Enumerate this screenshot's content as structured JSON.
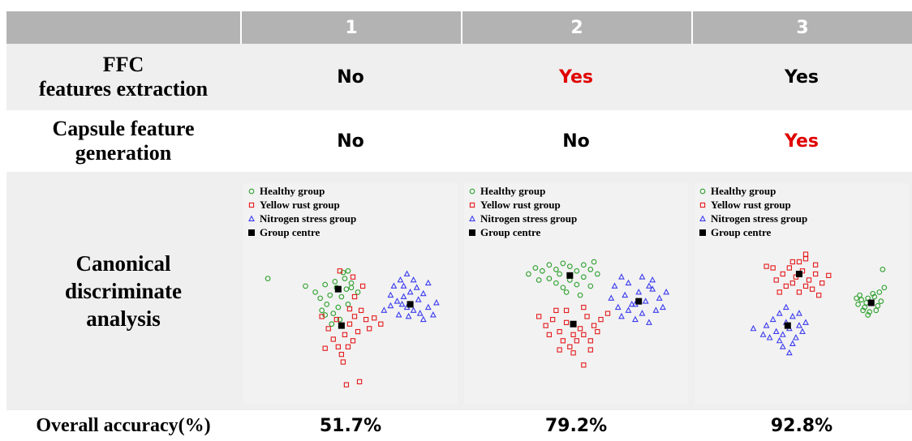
{
  "header": {
    "columns": [
      "",
      "1",
      "2",
      "3"
    ]
  },
  "rows": {
    "ffc": {
      "label": [
        "FFC",
        "features extraction"
      ],
      "values": [
        "No",
        "Yes",
        "Yes"
      ],
      "highlight": [
        false,
        true,
        false
      ]
    },
    "capsule": {
      "label": [
        "Capsule feature",
        "generation"
      ],
      "values": [
        "No",
        "No",
        "Yes"
      ],
      "highlight": [
        false,
        false,
        true
      ]
    },
    "cda": {
      "label": [
        "Canonical",
        "discriminate",
        "analysis"
      ]
    },
    "accuracy": {
      "label": "Overall accuracy(%)",
      "values": [
        "51.7%",
        "79.2%",
        "92.8%"
      ]
    }
  },
  "colors": {
    "header_bg": "#b3b3b3",
    "highlight": "#e00000",
    "healthy": "#2ca02c",
    "yellow_rust": "#e41a1c",
    "nitrogen": "#3b3bf0",
    "centre": "#000000"
  },
  "legend": [
    "Healthy group",
    "Yellow rust group",
    "Nitrogen stress group",
    "Group centre"
  ],
  "chart_data": [
    {
      "type": "scatter",
      "title": "",
      "series": [
        {
          "name": "Healthy group",
          "marker": "circle",
          "points": [
            [
              -3.2,
              1.0
            ],
            [
              -2.6,
              0.6
            ],
            [
              -2.3,
              0.2
            ],
            [
              -1.9,
              -0.2
            ],
            [
              -2.2,
              -0.6
            ],
            [
              -1.5,
              -0.8
            ],
            [
              -1.2,
              -0.4
            ],
            [
              -1.0,
              0.3
            ],
            [
              -0.7,
              0.8
            ],
            [
              -0.4,
              1.2
            ],
            [
              -0.8,
              1.5
            ],
            [
              -1.4,
              1.3
            ],
            [
              -2.0,
              1.1
            ],
            [
              -1.7,
              0.4
            ],
            [
              -1.1,
              -1.2
            ],
            [
              -0.4,
              0.9
            ],
            [
              0.0,
              0.6
            ],
            [
              -1.3,
              0.9
            ],
            [
              -0.6,
              -0.2
            ],
            [
              -1.6,
              -1.5
            ],
            [
              -2.0,
              -0.9
            ],
            [
              -0.9,
              1.9
            ],
            [
              -0.6,
              2.0
            ],
            [
              -5.5,
              1.5
            ]
          ]
        },
        {
          "name": "Yellow rust group",
          "marker": "square",
          "points": [
            [
              -1.8,
              -1.8
            ],
            [
              -1.5,
              -2.5
            ],
            [
              -1.2,
              -3.0
            ],
            [
              -0.8,
              -2.2
            ],
            [
              -0.5,
              -1.5
            ],
            [
              -0.2,
              -1.0
            ],
            [
              0.2,
              -0.6
            ],
            [
              0.5,
              -1.2
            ],
            [
              0.0,
              -2.0
            ],
            [
              -0.6,
              -3.0
            ],
            [
              -1.0,
              -3.5
            ],
            [
              -1.3,
              -1.2
            ],
            [
              -0.3,
              -2.6
            ],
            [
              0.7,
              -1.8
            ],
            [
              1.0,
              -1.1
            ],
            [
              1.4,
              -1.5
            ],
            [
              -2.0,
              -3.1
            ],
            [
              -0.9,
              -4.0
            ],
            [
              -0.5,
              -0.5
            ],
            [
              -0.2,
              0.3
            ],
            [
              0.3,
              1.0
            ],
            [
              -1.1,
              2.0
            ],
            [
              -0.3,
              1.6
            ],
            [
              0.1,
              -5.3
            ],
            [
              -0.7,
              -5.5
            ],
            [
              -2.2,
              -1.0
            ]
          ]
        },
        {
          "name": "Nitrogen stress group",
          "marker": "triangle",
          "points": [
            [
              1.6,
              -0.6
            ],
            [
              2.0,
              -0.3
            ],
            [
              2.4,
              0.0
            ],
            [
              2.8,
              0.3
            ],
            [
              3.2,
              0.6
            ],
            [
              3.6,
              0.9
            ],
            [
              4.0,
              0.5
            ],
            [
              3.0,
              -0.4
            ],
            [
              3.4,
              -0.6
            ],
            [
              3.8,
              -0.8
            ],
            [
              4.3,
              -0.4
            ],
            [
              4.6,
              -0.9
            ],
            [
              4.0,
              -1.2
            ],
            [
              3.1,
              -1.0
            ],
            [
              2.5,
              -0.9
            ],
            [
              2.0,
              0.4
            ],
            [
              2.8,
              1.0
            ],
            [
              3.4,
              1.4
            ],
            [
              4.3,
              1.2
            ],
            [
              4.8,
              -0.1
            ],
            [
              3.7,
              0.1
            ],
            [
              2.7,
              -0.2
            ],
            [
              2.2,
              1.0
            ],
            [
              2.6,
              1.4
            ],
            [
              3.0,
              1.8
            ]
          ]
        },
        {
          "name": "Group centre",
          "marker": "square-filled",
          "points": [
            [
              -1.2,
              0.8
            ],
            [
              -1.0,
              -1.6
            ],
            [
              3.2,
              -0.2
            ]
          ]
        }
      ]
    },
    {
      "type": "scatter",
      "title": "",
      "series": [
        {
          "name": "Healthy group",
          "marker": "circle",
          "points": [
            [
              -3.2,
              1.8
            ],
            [
              -2.8,
              2.2
            ],
            [
              -2.4,
              2.0
            ],
            [
              -2.0,
              2.4
            ],
            [
              -1.6,
              2.1
            ],
            [
              -1.2,
              2.5
            ],
            [
              -0.8,
              2.3
            ],
            [
              -0.4,
              2.0
            ],
            [
              0.0,
              2.4
            ],
            [
              0.4,
              2.1
            ],
            [
              0.8,
              1.8
            ],
            [
              -2.0,
              1.5
            ],
            [
              -1.6,
              1.2
            ],
            [
              -1.2,
              0.9
            ],
            [
              -0.8,
              1.4
            ],
            [
              -0.4,
              1.1
            ],
            [
              0.0,
              1.6
            ],
            [
              0.4,
              1.0
            ],
            [
              -1.0,
              0.6
            ],
            [
              -0.2,
              0.4
            ],
            [
              -2.6,
              1.4
            ],
            [
              -1.4,
              1.8
            ],
            [
              0.6,
              2.6
            ]
          ]
        },
        {
          "name": "Yellow rust group",
          "marker": "square",
          "points": [
            [
              -2.6,
              -1.0
            ],
            [
              -2.2,
              -1.6
            ],
            [
              -1.8,
              -1.2
            ],
            [
              -1.4,
              -2.0
            ],
            [
              -1.0,
              -1.4
            ],
            [
              -0.6,
              -2.2
            ],
            [
              -0.2,
              -1.8
            ],
            [
              0.2,
              -1.0
            ],
            [
              0.6,
              -1.6
            ],
            [
              1.0,
              -1.2
            ],
            [
              -1.6,
              -0.6
            ],
            [
              -1.2,
              -2.6
            ],
            [
              -0.8,
              -3.0
            ],
            [
              -0.4,
              -2.6
            ],
            [
              0.0,
              -2.2
            ],
            [
              0.4,
              -2.6
            ],
            [
              0.8,
              -2.0
            ],
            [
              -2.0,
              -2.2
            ],
            [
              -1.0,
              -0.6
            ],
            [
              0.0,
              -0.4
            ],
            [
              -0.6,
              -3.4
            ],
            [
              0.4,
              -3.2
            ],
            [
              0.0,
              -4.2
            ],
            [
              -1.4,
              -3.2
            ],
            [
              1.4,
              -0.8
            ]
          ]
        },
        {
          "name": "Nitrogen stress group",
          "marker": "triangle",
          "points": [
            [
              1.6,
              0.2
            ],
            [
              2.0,
              -0.4
            ],
            [
              2.4,
              0.4
            ],
            [
              2.8,
              -0.2
            ],
            [
              3.2,
              0.6
            ],
            [
              3.6,
              0.0
            ],
            [
              4.0,
              0.8
            ],
            [
              4.4,
              0.2
            ],
            [
              2.2,
              -1.0
            ],
            [
              2.6,
              -0.6
            ],
            [
              3.0,
              -1.2
            ],
            [
              3.4,
              -0.8
            ],
            [
              3.8,
              -1.4
            ],
            [
              4.2,
              -0.6
            ],
            [
              1.8,
              1.0
            ],
            [
              2.6,
              1.2
            ],
            [
              3.4,
              1.6
            ],
            [
              4.0,
              1.4
            ],
            [
              4.6,
              -0.4
            ],
            [
              2.2,
              1.6
            ],
            [
              3.0,
              -0.2
            ],
            [
              3.8,
              1.0
            ],
            [
              4.8,
              0.6
            ]
          ]
        },
        {
          "name": "Group centre",
          "marker": "square-filled",
          "points": [
            [
              -0.8,
              1.7
            ],
            [
              -0.6,
              -1.5
            ],
            [
              3.2,
              0.0
            ]
          ]
        }
      ]
    },
    {
      "type": "scatter",
      "title": "",
      "series": [
        {
          "name": "Healthy group",
          "marker": "circle",
          "points": [
            [
              3.0,
              -0.2
            ],
            [
              3.2,
              0.1
            ],
            [
              3.4,
              -0.4
            ],
            [
              3.6,
              0.2
            ],
            [
              3.8,
              -0.1
            ],
            [
              4.0,
              0.3
            ],
            [
              4.2,
              -0.3
            ],
            [
              3.3,
              -0.6
            ],
            [
              3.7,
              -0.7
            ],
            [
              4.1,
              -0.6
            ],
            [
              3.1,
              0.4
            ],
            [
              3.9,
              0.5
            ],
            [
              4.4,
              0.0
            ],
            [
              3.5,
              -0.1
            ],
            [
              4.3,
              0.6
            ],
            [
              3.6,
              -0.9
            ],
            [
              4.6,
              0.9
            ],
            [
              4.5,
              2.1
            ],
            [
              2.9,
              0.2
            ]
          ]
        },
        {
          "name": "Yellow rust group",
          "marker": "square",
          "points": [
            [
              -2.0,
              1.4
            ],
            [
              -1.6,
              1.8
            ],
            [
              -1.2,
              2.2
            ],
            [
              -0.8,
              1.6
            ],
            [
              -0.4,
              2.0
            ],
            [
              0.0,
              1.4
            ],
            [
              0.4,
              1.8
            ],
            [
              0.8,
              1.2
            ],
            [
              -1.0,
              2.6
            ],
            [
              -0.2,
              2.8
            ],
            [
              0.4,
              2.4
            ],
            [
              -1.4,
              1.0
            ],
            [
              -0.6,
              0.6
            ],
            [
              0.2,
              0.8
            ],
            [
              -0.2,
              1.0
            ],
            [
              -1.8,
              0.6
            ],
            [
              -2.2,
              2.2
            ],
            [
              -1.0,
              1.2
            ],
            [
              -0.6,
              2.6
            ],
            [
              0.6,
              0.4
            ],
            [
              -2.6,
              2.3
            ],
            [
              1.2,
              1.7
            ],
            [
              -0.2,
              3.1
            ]
          ]
        },
        {
          "name": "Nitrogen stress group",
          "marker": "triangle",
          "points": [
            [
              -2.6,
              -1.6
            ],
            [
              -2.2,
              -1.2
            ],
            [
              -1.8,
              -0.8
            ],
            [
              -1.4,
              -1.4
            ],
            [
              -1.0,
              -1.0
            ],
            [
              -0.6,
              -1.6
            ],
            [
              -2.0,
              -2.0
            ],
            [
              -1.6,
              -2.2
            ],
            [
              -1.2,
              -1.8
            ],
            [
              -0.8,
              -2.4
            ],
            [
              -0.4,
              -2.0
            ],
            [
              -1.4,
              -0.4
            ],
            [
              -1.0,
              -2.8
            ],
            [
              -0.2,
              -1.4
            ],
            [
              -2.4,
              -2.4
            ],
            [
              -1.8,
              -2.6
            ],
            [
              -0.6,
              -0.8
            ],
            [
              -1.2,
              -3.4
            ],
            [
              -3.4,
              -1.8
            ],
            [
              -2.8,
              -2.2
            ],
            [
              -1.6,
              -3.0
            ]
          ]
        },
        {
          "name": "Group centre",
          "marker": "square-filled",
          "points": [
            [
              3.8,
              -0.1
            ],
            [
              -0.6,
              1.8
            ],
            [
              -1.3,
              -1.6
            ]
          ]
        }
      ]
    }
  ]
}
